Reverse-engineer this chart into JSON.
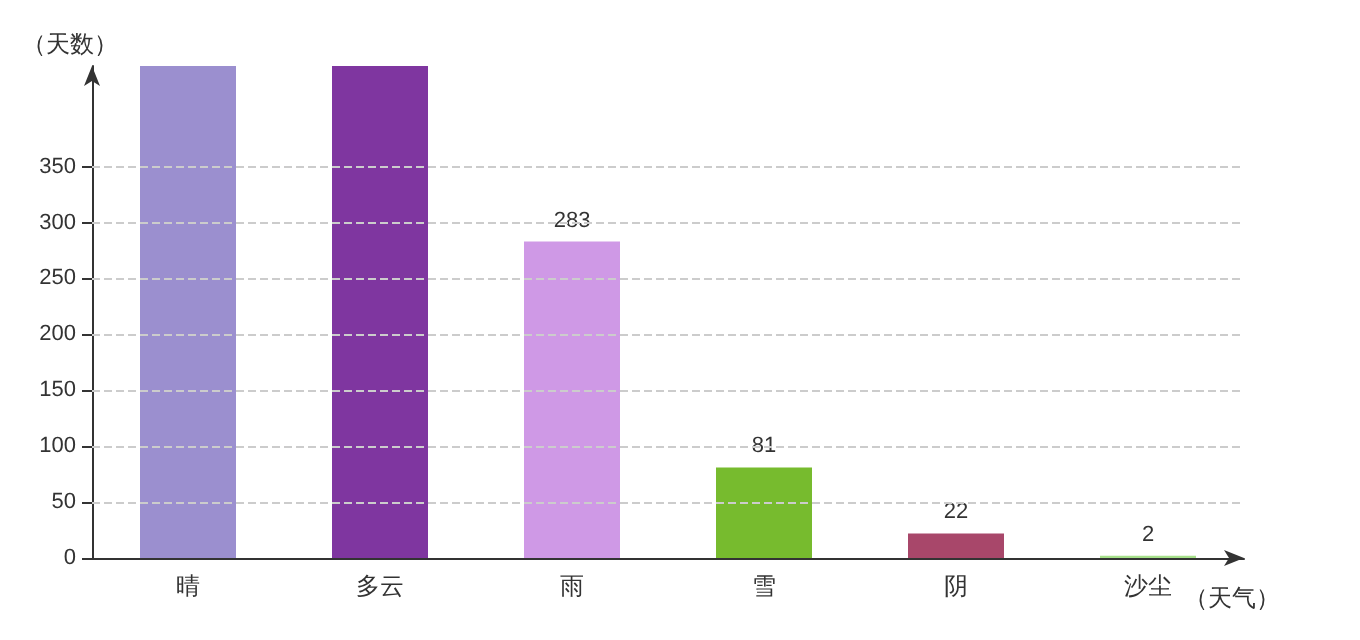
{
  "chart_data": {
    "type": "bar",
    "xlabel": "（天气）",
    "ylabel": "（天数）",
    "categories": [
      "晴",
      "多云",
      "雨",
      "雪",
      "阴",
      "沙尘"
    ],
    "values": [
      440,
      440,
      283,
      81,
      22,
      2
    ],
    "colors": [
      "#9b8fcf",
      "#7f36a0",
      "#cf99e6",
      "#77bb2e",
      "#a8476a",
      "#a6e08a"
    ],
    "value_labels": [
      null,
      null,
      "283",
      "81",
      "22",
      "2"
    ],
    "ylim": [
      0,
      440
    ],
    "yticks": [
      0,
      50,
      100,
      150,
      200,
      250,
      300,
      350
    ],
    "grid": "y"
  }
}
